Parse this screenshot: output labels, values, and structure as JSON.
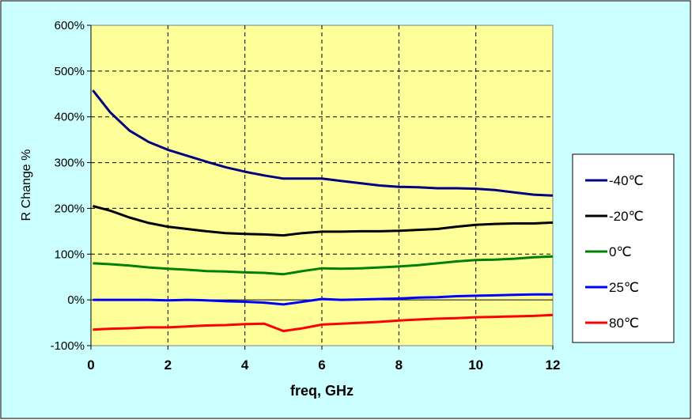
{
  "chart_data": {
    "type": "line",
    "title": "",
    "xlabel": "freq, GHz",
    "ylabel": "R Change %",
    "xlim": [
      0,
      12
    ],
    "ylim": [
      -100,
      600
    ],
    "x_ticks": [
      0,
      2,
      4,
      6,
      8,
      10,
      12
    ],
    "y_ticks": [
      -100,
      0,
      100,
      200,
      300,
      400,
      500,
      600
    ],
    "x_tick_labels": [
      "0",
      "2",
      "4",
      "6",
      "8",
      "10",
      "12"
    ],
    "y_tick_labels": [
      "-100%",
      "0%",
      "100%",
      "200%",
      "300%",
      "400%",
      "500%",
      "600%"
    ],
    "grid": true,
    "legend_position": "right",
    "x": [
      0.05,
      0.5,
      1,
      1.5,
      2,
      2.5,
      3,
      3.5,
      4,
      4.5,
      5,
      5.5,
      6,
      6.5,
      7,
      7.5,
      8,
      8.5,
      9,
      9.5,
      10,
      10.5,
      11,
      11.5,
      12
    ],
    "series": [
      {
        "name": "-40℃",
        "color": "#000080",
        "values": [
          458,
          410,
          370,
          345,
          328,
          315,
          302,
          290,
          280,
          272,
          265,
          265,
          265,
          260,
          255,
          250,
          247,
          246,
          244,
          244,
          243,
          240,
          235,
          230,
          228
        ]
      },
      {
        "name": "-20℃",
        "color": "#000000",
        "values": [
          205,
          195,
          180,
          168,
          160,
          155,
          150,
          146,
          144,
          143,
          141,
          146,
          149,
          149,
          150,
          150,
          151,
          153,
          155,
          160,
          164,
          166,
          167,
          167,
          169
        ]
      },
      {
        "name": "0℃",
        "color": "#008000",
        "values": [
          80,
          78,
          75,
          71,
          68,
          66,
          63,
          62,
          60,
          59,
          56,
          63,
          69,
          68,
          69,
          71,
          73,
          76,
          80,
          84,
          87,
          88,
          90,
          93,
          95
        ]
      },
      {
        "name": "25℃",
        "color": "#0000ff",
        "values": [
          0,
          0,
          0,
          0,
          -1,
          0,
          -1,
          -3,
          -4,
          -6,
          -10,
          -4,
          2,
          0,
          1,
          2,
          3,
          5,
          6,
          8,
          9,
          10,
          11,
          12,
          12
        ]
      },
      {
        "name": "80℃",
        "color": "#ff0000",
        "values": [
          -65,
          -63,
          -62,
          -60,
          -60,
          -58,
          -56,
          -55,
          -53,
          -52,
          -68,
          -62,
          -54,
          -52,
          -50,
          -48,
          -45,
          -43,
          -41,
          -40,
          -38,
          -37,
          -36,
          -35,
          -33
        ]
      }
    ]
  },
  "colors": {
    "frame_background": "#ccffff",
    "plot_background": "#ffff99"
  }
}
